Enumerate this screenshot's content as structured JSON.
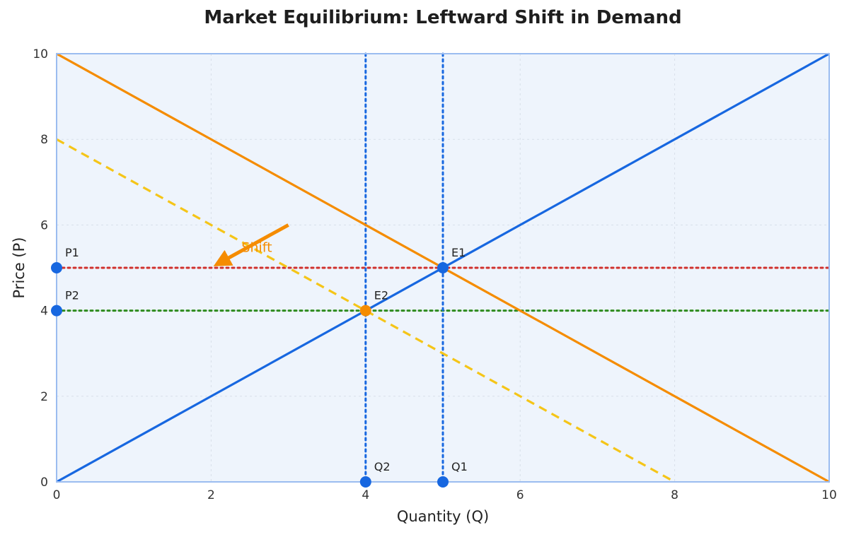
{
  "chart_data": {
    "type": "line",
    "title": "Market Equilibrium: Leftward Shift in Demand",
    "xlabel": "Quantity (Q)",
    "ylabel": "Price (P)",
    "xlim": [
      0,
      10
    ],
    "ylim": [
      0,
      10
    ],
    "x_ticks": [
      "0",
      "2",
      "4",
      "6",
      "8",
      "10"
    ],
    "y_ticks": [
      "0",
      "2",
      "4",
      "6",
      "8",
      "10"
    ],
    "grid": true,
    "background": "#eef4fc",
    "frame_color": "#9bbcf0",
    "series": [
      {
        "role": "supply",
        "style": "solid",
        "color": "#1767e0",
        "points": [
          [
            0,
            0
          ],
          [
            10,
            10
          ]
        ]
      },
      {
        "role": "original-demand",
        "style": "solid",
        "color": "#f58c00",
        "points": [
          [
            0,
            10
          ],
          [
            10,
            0
          ]
        ]
      },
      {
        "role": "new-demand",
        "style": "dashed",
        "color": "#f5c518",
        "points": [
          [
            0,
            8
          ],
          [
            8,
            0
          ]
        ]
      }
    ],
    "guides": [
      {
        "role": "price-p1",
        "orientation": "horizontal",
        "value": 5,
        "style": "dotted",
        "color": "#d0312d"
      },
      {
        "role": "price-p2",
        "orientation": "horizontal",
        "value": 4,
        "style": "dotted",
        "color": "#2e8b1e"
      },
      {
        "role": "quantity-q1",
        "orientation": "vertical",
        "value": 5,
        "style": "dotted",
        "color": "#1767e0"
      },
      {
        "role": "quantity-q2",
        "orientation": "vertical",
        "value": 4,
        "style": "dotted",
        "color": "#1767e0"
      }
    ],
    "points": [
      {
        "label": "E1",
        "x": 5,
        "y": 5,
        "color": "#1767e0"
      },
      {
        "label": "E2",
        "x": 4,
        "y": 4,
        "color": "#f58c00"
      },
      {
        "label": "P1",
        "x": 0,
        "y": 5,
        "color": "#1767e0"
      },
      {
        "label": "P2",
        "x": 0,
        "y": 4,
        "color": "#1767e0"
      },
      {
        "label": "Q1",
        "x": 5,
        "y": 0,
        "color": "#1767e0"
      },
      {
        "label": "Q2",
        "x": 4,
        "y": 0,
        "color": "#1767e0"
      }
    ],
    "annotations": [
      {
        "text": "Shift",
        "color": "#f58c00",
        "arrow_from": [
          3,
          6
        ],
        "arrow_to": [
          2,
          5
        ]
      }
    ]
  }
}
